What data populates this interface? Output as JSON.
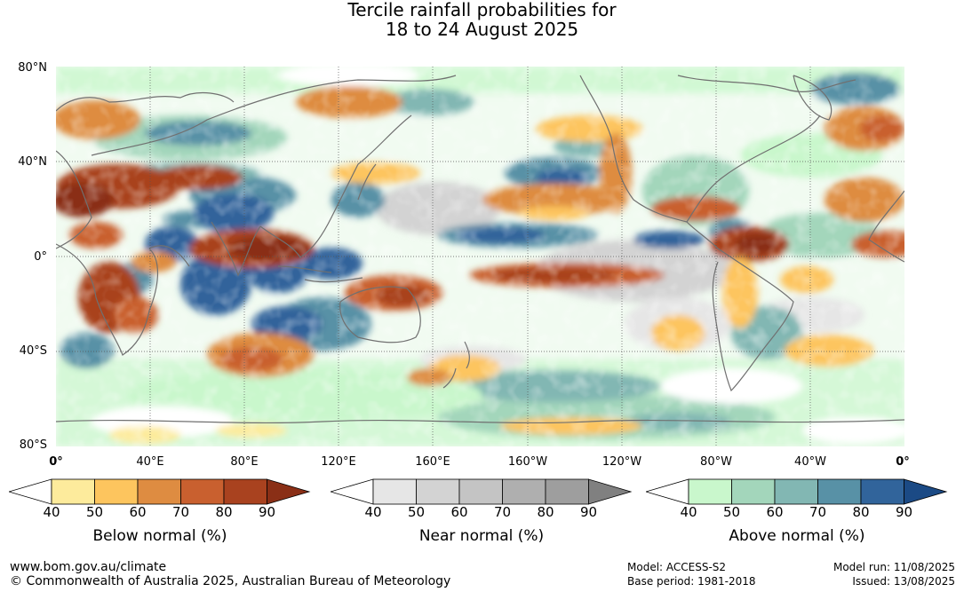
{
  "title": {
    "line1": "Tercile rainfall probabilities for",
    "line2": "18 to 24 August 2025"
  },
  "axes": {
    "lat_labels": [
      "80°N",
      "40°N",
      "0°",
      "40°S",
      "80°S"
    ],
    "lon_labels": [
      "0°",
      "40°E",
      "80°E",
      "120°E",
      "160°E",
      "160°W",
      "120°W",
      "80°W",
      "40°W",
      "0°"
    ]
  },
  "legends": [
    {
      "id": "below",
      "title": "Below normal (%)",
      "ticks": [
        "40",
        "50",
        "60",
        "70",
        "80",
        "90"
      ],
      "colors": [
        "#ffffff",
        "#fdeb9c",
        "#fdc55e",
        "#de8c41",
        "#c9602f",
        "#a9421f",
        "#8a2f16"
      ]
    },
    {
      "id": "near",
      "title": "Near normal (%)",
      "ticks": [
        "40",
        "50",
        "60",
        "70",
        "80",
        "90"
      ],
      "colors": [
        "#ffffff",
        "#e6e6e6",
        "#d3d3d3",
        "#c4c4c4",
        "#afafaf",
        "#9e9e9e",
        "#808080"
      ]
    },
    {
      "id": "above",
      "title": "Above normal (%)",
      "ticks": [
        "40",
        "50",
        "60",
        "70",
        "80",
        "90"
      ],
      "colors": [
        "#ffffff",
        "#c9f7cc",
        "#a3d6bb",
        "#82b7b3",
        "#5891a6",
        "#31649b",
        "#1b4a85"
      ]
    }
  ],
  "footer": {
    "website": "www.bom.gov.au/climate",
    "copyright": "© Commonwealth of Australia 2025, Australian Bureau of Meteorology",
    "model": "Model: ACCESS-S2",
    "base_period": "Base period: 1981-2018",
    "model_run": "Model run: 11/08/2025",
    "issued": "Issued: 13/08/2025"
  }
}
